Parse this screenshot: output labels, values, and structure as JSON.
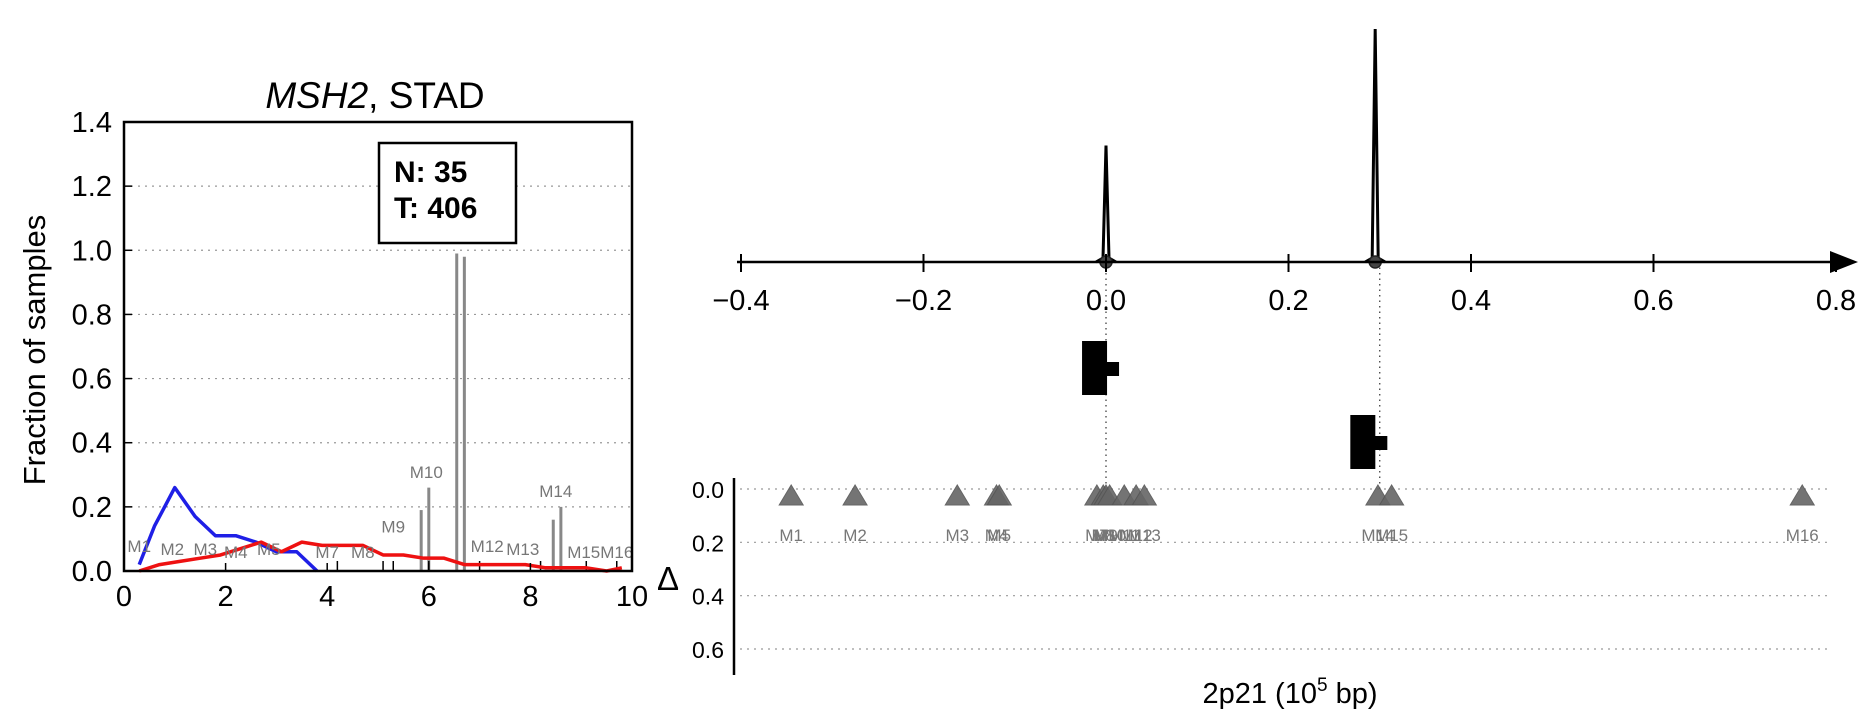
{
  "chart_data": [
    {
      "type": "line",
      "title_italic": "MSH2",
      "title_rest": ", STAD",
      "ylabel": "Fraction of samples",
      "xlim": [
        0,
        10
      ],
      "ylim": [
        0,
        1.4
      ],
      "xticks": [
        "0",
        "2",
        "4",
        "6",
        "8",
        "10"
      ],
      "yticks": [
        "0.0",
        "0.2",
        "0.4",
        "0.6",
        "0.8",
        "1.0",
        "1.2",
        "1.4"
      ],
      "grid": "horizontal dotted",
      "annotation": {
        "line1": "N: 35",
        "line2": "T: 406"
      },
      "series": [
        {
          "color": "#1f1fe6",
          "x": [
            0.3,
            0.6,
            1.0,
            1.4,
            1.8,
            2.2,
            2.6,
            3.0,
            3.4,
            3.8
          ],
          "y": [
            0.02,
            0.14,
            0.26,
            0.17,
            0.11,
            0.11,
            0.09,
            0.06,
            0.06,
            0.0
          ]
        },
        {
          "color": "#ee1111",
          "x": [
            0.3,
            0.7,
            1.1,
            1.5,
            1.9,
            2.3,
            2.7,
            3.1,
            3.5,
            3.9,
            4.3,
            4.7,
            5.1,
            5.5,
            5.9,
            6.3,
            6.7,
            7.1,
            7.5,
            7.9,
            8.3,
            8.7,
            9.1,
            9.5,
            9.8
          ],
          "y": [
            0.0,
            0.02,
            0.03,
            0.04,
            0.05,
            0.07,
            0.09,
            0.06,
            0.09,
            0.08,
            0.08,
            0.08,
            0.05,
            0.05,
            0.04,
            0.04,
            0.02,
            0.02,
            0.02,
            0.02,
            0.01,
            0.01,
            0.01,
            0.0,
            0.01
          ]
        }
      ],
      "gray_bars": [
        {
          "x": 5.85,
          "y": 0.19
        },
        {
          "x": 6.0,
          "y": 0.26
        },
        {
          "x": 6.55,
          "y": 0.99
        },
        {
          "x": 6.7,
          "y": 0.98
        },
        {
          "x": 8.45,
          "y": 0.16
        },
        {
          "x": 8.6,
          "y": 0.2
        }
      ],
      "black_ticks": [
        4.2,
        5.1,
        5.3,
        6.0,
        7.0,
        8.2,
        9.1,
        9.7
      ],
      "markers": [
        {
          "label": "M1",
          "x": 0.3,
          "y": 0.06
        },
        {
          "label": "M2",
          "x": 0.95,
          "y": 0.05
        },
        {
          "label": "M3",
          "x": 1.6,
          "y": 0.05
        },
        {
          "label": "M4",
          "x": 2.2,
          "y": 0.04
        },
        {
          "label": "M5",
          "x": 2.85,
          "y": 0.05
        },
        {
          "label": "M7",
          "x": 4.0,
          "y": 0.04
        },
        {
          "label": "M8",
          "x": 4.7,
          "y": 0.04
        },
        {
          "label": "M9",
          "x": 5.3,
          "y": 0.12
        },
        {
          "label": "M10",
          "x": 5.95,
          "y": 0.29
        },
        {
          "label": "M12",
          "x": 7.15,
          "y": 0.06
        },
        {
          "label": "M13",
          "x": 7.85,
          "y": 0.05
        },
        {
          "label": "M14",
          "x": 8.5,
          "y": 0.23
        },
        {
          "label": "M15",
          "x": 9.05,
          "y": 0.04
        },
        {
          "label": "M16",
          "x": 9.7,
          "y": 0.04
        }
      ]
    },
    {
      "type": "scatter",
      "xlabel": "2p21 (10",
      "xlabel_sup": "5",
      "xlabel_end": " bp)",
      "xlim": [
        -0.4,
        0.8
      ],
      "xticks": [
        "−0.4",
        "−0.2",
        "0.0",
        "0.2",
        "0.4",
        "0.6",
        "0.8"
      ],
      "delta_label": "Δ",
      "yticks": [
        "0.0",
        "0.2",
        "0.4",
        "0.6"
      ],
      "ylim": [
        0,
        0.7
      ],
      "grid": "horizontal dotted",
      "peaks": [
        {
          "x": 0.0,
          "rel_height": 0.5
        },
        {
          "x": 0.295,
          "rel_height": 1.0
        }
      ],
      "dotted_lines": [
        0.0,
        0.3
      ],
      "blocks": [
        {
          "x": -0.012,
          "level": "upper"
        },
        {
          "x": 0.282,
          "level": "lower"
        }
      ],
      "mutations": [
        {
          "label": "M1",
          "x": -0.345
        },
        {
          "label": "M2",
          "x": -0.275
        },
        {
          "label": "M3",
          "x": -0.163
        },
        {
          "label": "M4",
          "x": -0.12
        },
        {
          "label": "M5",
          "x": -0.117
        },
        {
          "label": "M7",
          "x": -0.01
        },
        {
          "label": "M8",
          "x": -0.003
        },
        {
          "label": "M9",
          "x": 0.0
        },
        {
          "label": "M10",
          "x": 0.004
        },
        {
          "label": "M11",
          "x": 0.02
        },
        {
          "label": "M12",
          "x": 0.033
        },
        {
          "label": "M13",
          "x": 0.042
        },
        {
          "label": "M14",
          "x": 0.298
        },
        {
          "label": "M15",
          "x": 0.313
        },
        {
          "label": "M16",
          "x": 0.763
        }
      ]
    }
  ]
}
